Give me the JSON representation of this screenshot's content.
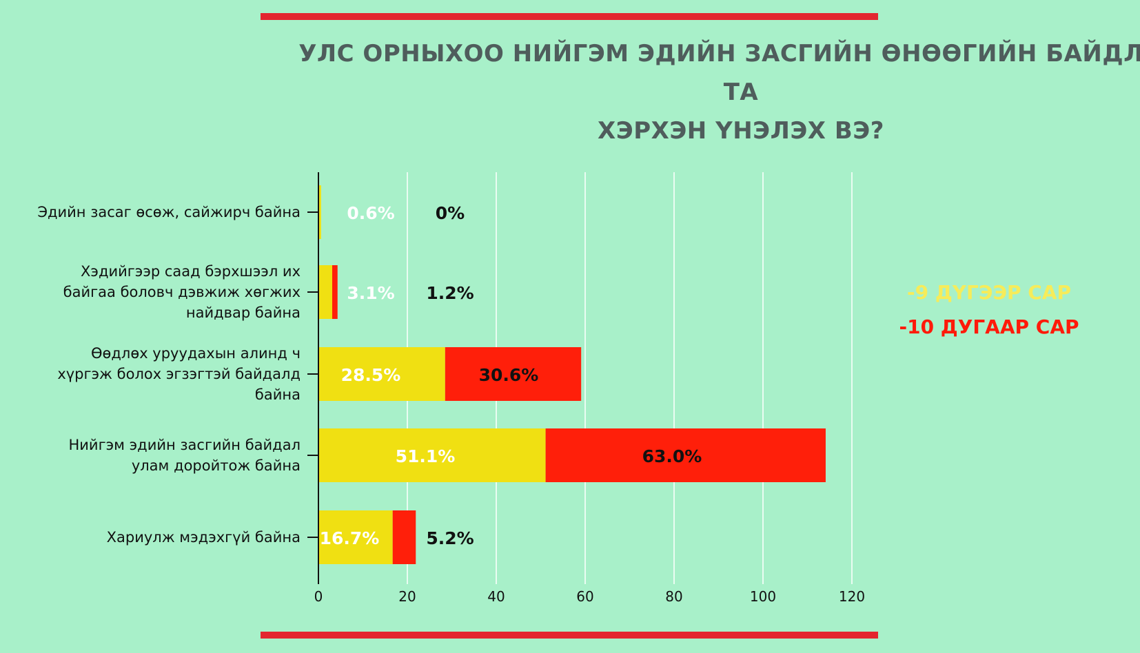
{
  "title_lines": [
    "УЛС ОРНЫХОО НИЙГЭМ ЭДИЙН ЗАСГИЙН ӨНӨӨГИЙН БАЙДЛЫГ ТА",
    "ХЭРХЭН ҮНЭЛЭХ ВЭ?"
  ],
  "legend": [
    {
      "label": "-9 ДҮГЭЭР САР",
      "color": "#f6ec5a"
    },
    {
      "label": "-10 ДУГААР САР",
      "color": "#ff1a0a"
    }
  ],
  "chart_data": {
    "type": "bar",
    "orientation": "horizontal",
    "stacked": true,
    "categories": [
      [
        "Эдийн засаг өсөж, сайжирч байна"
      ],
      [
        "Хэдийгээр саад бэрхшээл их",
        "байгаа боловч дэвжиж хөгжих",
        "найдвар байна"
      ],
      [
        "Өөдлөх уруудахын алинд ч",
        "хүргэж болох эгзэгтэй байдалд",
        "байна"
      ],
      [
        "Нийгэм эдийн засгийн байдал",
        "улам доройтож байна"
      ],
      [
        "Хариулж мэдэхгүй байна"
      ]
    ],
    "series": [
      {
        "name": "-9 ДҮГЭЭР САР",
        "color": "#f0e012",
        "label_color": "#ffffff",
        "values": [
          0.6,
          3.1,
          28.5,
          51.1,
          16.7
        ],
        "labels": [
          "0.6%",
          "3.1%",
          "28.5%",
          "51.1%",
          "16.7%"
        ]
      },
      {
        "name": "-10 ДУГААР САР",
        "color": "#ff1f0a",
        "label_color": "#111111",
        "values": [
          0,
          1.2,
          30.6,
          63.0,
          5.2
        ],
        "labels": [
          "0%",
          "1.2%",
          "30.6%",
          "63.0%",
          "5.2%"
        ]
      }
    ],
    "xlim": [
      0,
      120
    ],
    "xticks": [
      0,
      20,
      40,
      60,
      80,
      100,
      120
    ],
    "grid": true
  }
}
